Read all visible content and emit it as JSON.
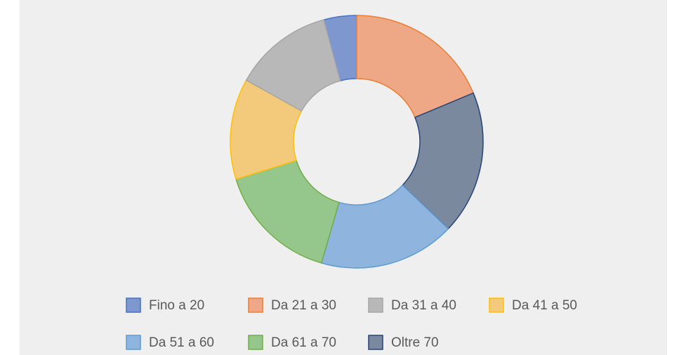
{
  "chart_data": {
    "type": "donut",
    "categories": [
      "Fino a 20",
      "Da 21 a 30",
      "Da 31 a 40",
      "Da 41 a 50",
      "Da 51 a 60",
      "Da 61 a 70",
      "Oltre 70"
    ],
    "values": [
      4.2,
      18.7,
      12.7,
      12.9,
      17.4,
      15.7,
      18.4
    ],
    "colors": [
      "#7f97cf",
      "#eea886",
      "#b8b8b8",
      "#f3c97b",
      "#8fb5de",
      "#95c78c",
      "#7b899f"
    ],
    "borders": [
      "#4472c4",
      "#ed7d31",
      "#a5a5a5",
      "#ffc000",
      "#5b9bd5",
      "#70ad47",
      "#264478"
    ],
    "legend": "bottom"
  }
}
